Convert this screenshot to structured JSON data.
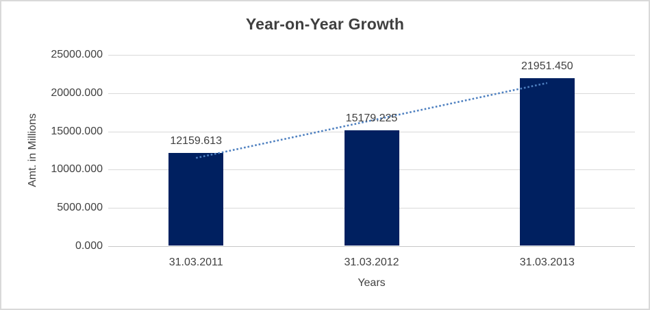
{
  "window": {
    "background": "#ffffff",
    "border_color": "#d9d9d9"
  },
  "chart_data": {
    "type": "bar",
    "title": "Year-on-Year Growth",
    "xlabel": "Years",
    "ylabel": "Amt. in Millions",
    "categories": [
      "31.03.2011",
      "31.03.2012",
      "31.03.2013"
    ],
    "values": [
      12159.613,
      15179.225,
      21951.45
    ],
    "data_labels": [
      "12159.613",
      "15179.225",
      "21951.450"
    ],
    "ylim": [
      0,
      25000
    ],
    "y_tick_values": [
      0,
      5000,
      10000,
      15000,
      20000,
      25000
    ],
    "y_tick_labels": [
      "0.000",
      "5000.000",
      "10000.000",
      "15000.000",
      "20000.000",
      "25000.000"
    ],
    "grid": true,
    "legend": "none",
    "trendline": {
      "type": "linear",
      "line_style": "dotted",
      "color": "#4e80c0",
      "span": "first-category-center-to-last-category-center"
    },
    "colors": {
      "bar": "#002060",
      "gridline": "#d9d9d9",
      "axis_line": "#c6c6c6",
      "text": "#404040",
      "title_text": "#3f3f3f"
    }
  }
}
